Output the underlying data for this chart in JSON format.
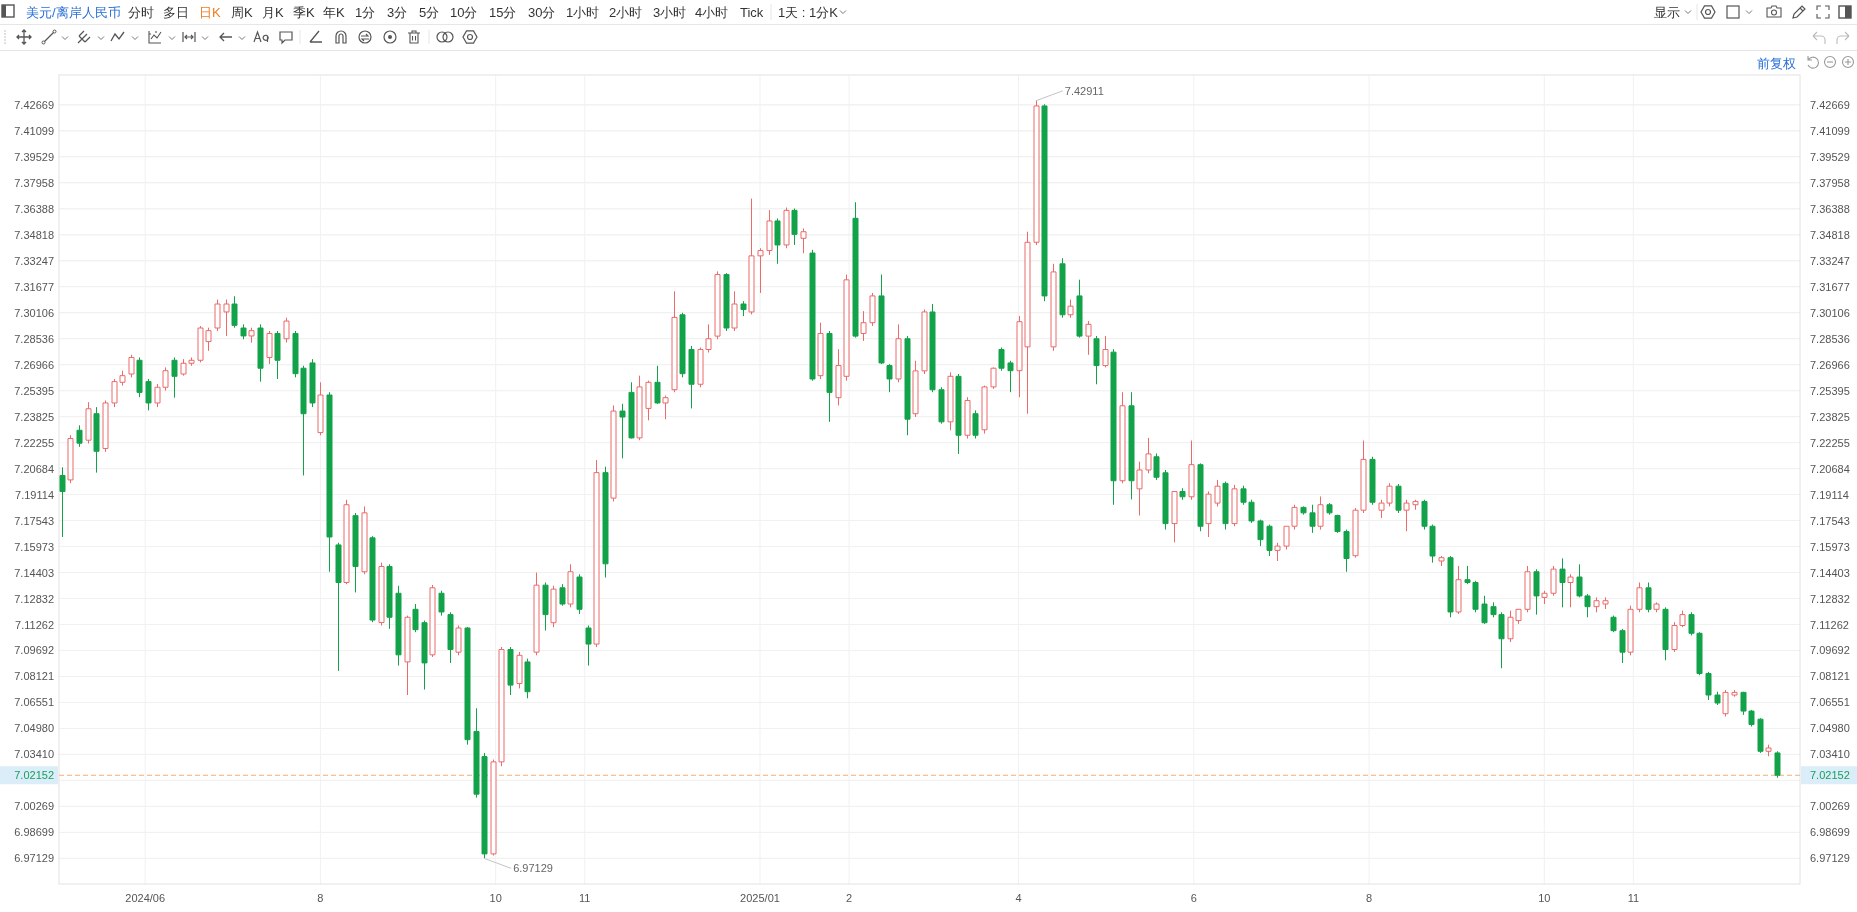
{
  "chart_data": {
    "type": "candlestick",
    "title": "美元/离岸人民币",
    "annotations": [
      "分时",
      "多日",
      "日K",
      "周K",
      "月K",
      "季K",
      "年K",
      "1分",
      "3分",
      "5分",
      "10分",
      "15分",
      "30分",
      "1小时",
      "2小时",
      "3小时",
      "4小时",
      "Tick",
      "1天 : 1分K",
      "显示",
      "前复权",
      {
        "text": "7.42911",
        "x": "2025-04-07",
        "y": 7.42911
      },
      {
        "text": "6.97129",
        "x": "2024-09-27",
        "y": 6.97129
      }
    ],
    "x": [
      "2024-05-03",
      "2024-05-06",
      "2024-05-09",
      "2024-05-12",
      "2024-05-15",
      "2024-05-18",
      "2024-05-21",
      "2024-05-24",
      "2024-05-27",
      "2024-05-30",
      "2024-06-02",
      "2024-06-05",
      "2024-06-08",
      "2024-06-11",
      "2024-06-14",
      "2024-06-17",
      "2024-06-20",
      "2024-06-23",
      "2024-06-26",
      "2024-06-29",
      "2024-07-02",
      "2024-07-05",
      "2024-07-08",
      "2024-07-11",
      "2024-07-14",
      "2024-07-17",
      "2024-07-20",
      "2024-07-23",
      "2024-07-26",
      "2024-07-29",
      "2024-08-01",
      "2024-08-04",
      "2024-08-07",
      "2024-08-10",
      "2024-08-13",
      "2024-08-16",
      "2024-08-19",
      "2024-08-22",
      "2024-08-25",
      "2024-08-28",
      "2024-08-31",
      "2024-09-03",
      "2024-09-06",
      "2024-09-09",
      "2024-09-12",
      "2024-09-15",
      "2024-09-18",
      "2024-09-21",
      "2024-09-24",
      "2024-09-27",
      "2024-09-30",
      "2024-10-03",
      "2024-10-06",
      "2024-10-09",
      "2024-10-12",
      "2024-10-15",
      "2024-10-18",
      "2024-10-21",
      "2024-10-24",
      "2024-10-27",
      "2024-10-30",
      "2024-11-02",
      "2024-11-05",
      "2024-11-08",
      "2024-11-11",
      "2024-11-14",
      "2024-11-17",
      "2024-11-20",
      "2024-11-23",
      "2024-11-26",
      "2024-11-29",
      "2024-12-02",
      "2024-12-05",
      "2024-12-08",
      "2024-12-11",
      "2024-12-14",
      "2024-12-17",
      "2024-12-20",
      "2024-12-23",
      "2024-12-26",
      "2024-12-29",
      "2025-01-01",
      "2025-01-04",
      "2025-01-07",
      "2025-01-10",
      "2025-01-13",
      "2025-01-16",
      "2025-01-19",
      "2025-01-22",
      "2025-01-25",
      "2025-01-28",
      "2025-01-31",
      "2025-02-03",
      "2025-02-06",
      "2025-02-09",
      "2025-02-12",
      "2025-02-15",
      "2025-02-18",
      "2025-02-21",
      "2025-02-24",
      "2025-02-27",
      "2025-03-02",
      "2025-03-05",
      "2025-03-08",
      "2025-03-11",
      "2025-03-14",
      "2025-03-17",
      "2025-03-20",
      "2025-03-23",
      "2025-03-26",
      "2025-03-29",
      "2025-04-01",
      "2025-04-04",
      "2025-04-07",
      "2025-04-10",
      "2025-04-13",
      "2025-04-16",
      "2025-04-19",
      "2025-04-22",
      "2025-04-25",
      "2025-04-28",
      "2025-05-01",
      "2025-05-04",
      "2025-05-07",
      "2025-05-10",
      "2025-05-13",
      "2025-05-16",
      "2025-05-19",
      "2025-05-22",
      "2025-05-25",
      "2025-05-28",
      "2025-05-31",
      "2025-06-03",
      "2025-06-06",
      "2025-06-09",
      "2025-06-12",
      "2025-06-15",
      "2025-06-18",
      "2025-06-21",
      "2025-06-24",
      "2025-06-27",
      "2025-06-30",
      "2025-07-03",
      "2025-07-06",
      "2025-07-09",
      "2025-07-12",
      "2025-07-15",
      "2025-07-18",
      "2025-07-21",
      "2025-07-24",
      "2025-07-27",
      "2025-07-30",
      "2025-08-02",
      "2025-08-05",
      "2025-08-08",
      "2025-08-11",
      "2025-08-14",
      "2025-08-17",
      "2025-08-20",
      "2025-08-23",
      "2025-08-26",
      "2025-08-29",
      "2025-09-01",
      "2025-09-04",
      "2025-09-07",
      "2025-09-10",
      "2025-09-13",
      "2025-09-16",
      "2025-09-19",
      "2025-09-22",
      "2025-09-25",
      "2025-09-28",
      "2025-10-01",
      "2025-10-04",
      "2025-10-07",
      "2025-10-10",
      "2025-10-13",
      "2025-10-16",
      "2025-10-19",
      "2025-10-22",
      "2025-10-25",
      "2025-10-28",
      "2025-10-31",
      "2025-11-03",
      "2025-11-06",
      "2025-11-09",
      "2025-11-12",
      "2025-11-15",
      "2025-11-18",
      "2025-11-21",
      "2025-11-24",
      "2025-11-27",
      "2025-11-30",
      "2025-12-03",
      "2025-12-06",
      "2025-12-09",
      "2025-12-12",
      "2025-12-15",
      "2025-12-18",
      "2025-12-21"
    ],
    "ohlc": [
      [
        7.2027,
        7.2076,
        7.1655,
        7.193
      ],
      [
        7.2,
        7.227,
        7.198,
        7.225
      ],
      [
        7.23,
        7.233,
        7.22,
        7.2222
      ],
      [
        7.224,
        7.247,
        7.222,
        7.243
      ],
      [
        7.24,
        7.244,
        7.2044,
        7.2173
      ],
      [
        7.219,
        7.248,
        7.217,
        7.2465
      ],
      [
        7.2465,
        7.261,
        7.244,
        7.2594
      ],
      [
        7.259,
        7.266,
        7.257,
        7.263
      ],
      [
        7.264,
        7.2756,
        7.262,
        7.274
      ],
      [
        7.2723,
        7.274,
        7.25,
        7.2529
      ],
      [
        7.2594,
        7.261,
        7.242,
        7.2465
      ],
      [
        7.2465,
        7.258,
        7.244,
        7.256
      ],
      [
        7.256,
        7.268,
        7.254,
        7.266
      ],
      [
        7.2723,
        7.274,
        7.2497,
        7.2626
      ],
      [
        7.264,
        7.273,
        7.263,
        7.2705
      ],
      [
        7.2705,
        7.274,
        7.269,
        7.2723
      ],
      [
        7.2723,
        7.293,
        7.271,
        7.2918
      ],
      [
        7.2836,
        7.292,
        7.278,
        7.2902
      ],
      [
        7.2918,
        7.309,
        7.29,
        7.3063
      ],
      [
        7.3015,
        7.309,
        7.287,
        7.3063
      ],
      [
        7.3063,
        7.311,
        7.292,
        7.2934
      ],
      [
        7.2918,
        7.294,
        7.285,
        7.287
      ],
      [
        7.287,
        7.292,
        7.283,
        7.2902
      ],
      [
        7.2918,
        7.294,
        7.2594,
        7.2675
      ],
      [
        7.274,
        7.29,
        7.27,
        7.2885
      ],
      [
        7.2885,
        7.29,
        7.261,
        7.2723
      ],
      [
        7.2853,
        7.298,
        7.283,
        7.296
      ],
      [
        7.2885,
        7.29,
        7.262,
        7.2642
      ],
      [
        7.2675,
        7.269,
        7.2027,
        7.24
      ],
      [
        7.2707,
        7.273,
        7.244,
        7.2465
      ],
      [
        7.2286,
        7.259,
        7.227,
        7.2513
      ],
      [
        7.2513,
        7.253,
        7.1445,
        7.1655
      ],
      [
        7.1607,
        7.162,
        7.0846,
        7.138
      ],
      [
        7.138,
        7.188,
        7.137,
        7.185
      ],
      [
        7.1784,
        7.18,
        7.132,
        7.1477
      ],
      [
        7.1445,
        7.184,
        7.143,
        7.1801
      ],
      [
        7.165,
        7.166,
        7.114,
        7.1153
      ],
      [
        7.1138,
        7.15,
        7.112,
        7.1477
      ],
      [
        7.1477,
        7.149,
        7.11,
        7.117
      ],
      [
        7.1315,
        7.136,
        7.0878,
        7.0943
      ],
      [
        7.09,
        7.118,
        7.07,
        7.117
      ],
      [
        7.1218,
        7.125,
        7.108,
        7.1095
      ],
      [
        7.1137,
        7.115,
        7.0733,
        7.0894
      ],
      [
        7.0943,
        7.1365,
        7.093,
        7.1348
      ],
      [
        7.1315,
        7.133,
        7.118,
        7.1202
      ],
      [
        7.1186,
        7.12,
        7.0894,
        7.0975
      ],
      [
        7.0959,
        7.112,
        7.094,
        7.1105
      ],
      [
        7.1105,
        7.111,
        7.04,
        7.043
      ],
      [
        7.048,
        7.062,
        7.008,
        7.0101
      ],
      [
        7.0328,
        7.035,
        6.97129,
        6.974
      ],
      [
        6.974,
        7.031,
        6.973,
        7.0296
      ],
      [
        7.0296,
        7.099,
        7.027,
        7.0975
      ],
      [
        7.0975,
        7.099,
        7.07,
        7.076
      ],
      [
        7.077,
        7.096,
        7.074,
        7.094
      ],
      [
        7.09,
        7.092,
        7.068,
        7.072
      ],
      [
        7.0959,
        7.144,
        7.094,
        7.1364
      ],
      [
        7.1364,
        7.138,
        7.109,
        7.1186
      ],
      [
        7.1137,
        7.136,
        7.111,
        7.134
      ],
      [
        7.1348,
        7.137,
        7.124,
        7.125
      ],
      [
        7.125,
        7.149,
        7.123,
        7.1445
      ],
      [
        7.1413,
        7.143,
        7.119,
        7.1218
      ],
      [
        7.1105,
        7.112,
        7.0878,
        7.1008
      ],
      [
        7.1008,
        7.212,
        7.099,
        7.2044
      ],
      [
        7.2044,
        7.208,
        7.141,
        7.1493
      ],
      [
        7.189,
        7.245,
        7.187,
        7.2416
      ],
      [
        7.2416,
        7.246,
        7.213,
        7.238
      ],
      [
        7.2529,
        7.259,
        7.225,
        7.2254
      ],
      [
        7.2254,
        7.263,
        7.224,
        7.2562
      ],
      [
        7.2432,
        7.26,
        7.236,
        7.259
      ],
      [
        7.259,
        7.269,
        7.246,
        7.2465
      ],
      [
        7.2465,
        7.251,
        7.2367,
        7.2497
      ],
      [
        7.2545,
        7.314,
        7.253,
        7.2982
      ],
      [
        7.2998,
        7.301,
        7.262,
        7.2642
      ],
      [
        7.2788,
        7.281,
        7.2432,
        7.2578
      ],
      [
        7.2578,
        7.28,
        7.256,
        7.2788
      ],
      [
        7.2788,
        7.294,
        7.277,
        7.2853
      ],
      [
        7.2869,
        7.326,
        7.285,
        7.3241
      ],
      [
        7.3241,
        7.325,
        7.29,
        7.2918
      ],
      [
        7.2918,
        7.314,
        7.29,
        7.3063
      ],
      [
        7.3063,
        7.308,
        7.299,
        7.303
      ],
      [
        7.3015,
        7.37,
        7.3,
        7.3354
      ],
      [
        7.3354,
        7.34,
        7.313,
        7.3386
      ],
      [
        7.3386,
        7.363,
        7.336,
        7.3565
      ],
      [
        7.3565,
        7.358,
        7.3306,
        7.342
      ],
      [
        7.342,
        7.3646,
        7.34,
        7.3629
      ],
      [
        7.3629,
        7.364,
        7.342,
        7.3484
      ],
      [
        7.346,
        7.352,
        7.337,
        7.35
      ],
      [
        7.3371,
        7.339,
        7.26,
        7.261
      ],
      [
        7.263,
        7.295,
        7.261,
        7.2885
      ],
      [
        7.2885,
        7.29,
        7.2351,
        7.2529
      ],
      [
        7.2497,
        7.279,
        7.245,
        7.2691
      ],
      [
        7.2626,
        7.3241,
        7.26,
        7.3209
      ],
      [
        7.3581,
        7.3678,
        7.286,
        7.2869
      ],
      [
        7.2885,
        7.302,
        7.284,
        7.295
      ],
      [
        7.295,
        7.313,
        7.293,
        7.3112
      ],
      [
        7.3112,
        7.3241,
        7.27,
        7.2707
      ],
      [
        7.2691,
        7.27,
        7.253,
        7.261
      ],
      [
        7.261,
        7.294,
        7.259,
        7.2853
      ],
      [
        7.2853,
        7.287,
        7.227,
        7.2367
      ],
      [
        7.24,
        7.272,
        7.238,
        7.2659
      ],
      [
        7.2659,
        7.303,
        7.264,
        7.3015
      ],
      [
        7.3015,
        7.3063,
        7.253,
        7.2545
      ],
      [
        7.2545,
        7.256,
        7.234,
        7.2351
      ],
      [
        7.2351,
        7.265,
        7.23,
        7.2626
      ],
      [
        7.2626,
        7.264,
        7.2157,
        7.227
      ],
      [
        7.227,
        7.25,
        7.225,
        7.248
      ],
      [
        7.24,
        7.242,
        7.225,
        7.227
      ],
      [
        7.2303,
        7.257,
        7.228,
        7.2562
      ],
      [
        7.2562,
        7.268,
        7.255,
        7.2675
      ],
      [
        7.2788,
        7.28,
        7.266,
        7.2675
      ],
      [
        7.2707,
        7.272,
        7.253,
        7.266
      ],
      [
        7.266,
        7.299,
        7.25,
        7.2956
      ],
      [
        7.2804,
        7.35,
        7.24,
        7.3436
      ],
      [
        7.3436,
        7.42911,
        7.342,
        7.426
      ],
      [
        7.426,
        7.427,
        7.308,
        7.3112
      ],
      [
        7.2804,
        7.3306,
        7.278,
        7.3257
      ],
      [
        7.3306,
        7.334,
        7.298,
        7.2998
      ],
      [
        7.2998,
        7.309,
        7.298,
        7.305
      ],
      [
        7.3112,
        7.321,
        7.286,
        7.2869
      ],
      [
        7.2869,
        7.296,
        7.2756,
        7.294
      ],
      [
        7.2853,
        7.287,
        7.2578,
        7.2691
      ],
      [
        7.2691,
        7.287,
        7.268,
        7.2788
      ],
      [
        7.2772,
        7.279,
        7.185,
        7.1995
      ],
      [
        7.1995,
        7.253,
        7.198,
        7.2448
      ],
      [
        7.2448,
        7.253,
        7.1882,
        7.1995
      ],
      [
        7.1946,
        7.211,
        7.1785,
        7.206
      ],
      [
        7.206,
        7.2254,
        7.204,
        7.2157
      ],
      [
        7.214,
        7.216,
        7.2,
        7.2016
      ],
      [
        7.2043,
        7.206,
        7.17,
        7.1736
      ],
      [
        7.1736,
        7.193,
        7.1623,
        7.193
      ],
      [
        7.193,
        7.195,
        7.188,
        7.1898
      ],
      [
        7.1898,
        7.2238,
        7.188,
        7.2092
      ],
      [
        7.2092,
        7.21,
        7.169,
        7.172
      ],
      [
        7.1736,
        7.193,
        7.1655,
        7.1914
      ],
      [
        7.186,
        7.2,
        7.184,
        7.1962
      ],
      [
        7.1979,
        7.199,
        7.17,
        7.1736
      ],
      [
        7.1736,
        7.197,
        7.172,
        7.1946
      ],
      [
        7.1946,
        7.1965,
        7.185,
        7.1865
      ],
      [
        7.1865,
        7.188,
        7.174,
        7.1752
      ],
      [
        7.1752,
        7.176,
        7.16,
        7.1639
      ],
      [
        7.172,
        7.173,
        7.154,
        7.1574
      ],
      [
        7.1574,
        7.162,
        7.151,
        7.16
      ],
      [
        7.16,
        7.172,
        7.158,
        7.172
      ],
      [
        7.172,
        7.185,
        7.17,
        7.1834
      ],
      [
        7.1834,
        7.184,
        7.179,
        7.1801
      ],
      [
        7.1801,
        7.185,
        7.168,
        7.172
      ],
      [
        7.172,
        7.19,
        7.17,
        7.185
      ],
      [
        7.185,
        7.186,
        7.179,
        7.1801
      ],
      [
        7.1785,
        7.179,
        7.168,
        7.1688
      ],
      [
        7.1688,
        7.17,
        7.1445,
        7.1525
      ],
      [
        7.1542,
        7.183,
        7.153,
        7.1817
      ],
      [
        7.1817,
        7.2238,
        7.18,
        7.2124
      ],
      [
        7.2124,
        7.214,
        7.185,
        7.1865
      ],
      [
        7.1817,
        7.188,
        7.177,
        7.186
      ],
      [
        7.186,
        7.198,
        7.184,
        7.1962
      ],
      [
        7.1962,
        7.1975,
        7.18,
        7.1817
      ],
      [
        7.1817,
        7.188,
        7.169,
        7.186
      ],
      [
        7.185,
        7.188,
        7.182,
        7.187
      ],
      [
        7.187,
        7.188,
        7.17,
        7.172
      ],
      [
        7.172,
        7.173,
        7.15,
        7.154
      ],
      [
        7.151,
        7.154,
        7.148,
        7.153
      ],
      [
        7.153,
        7.154,
        7.117,
        7.1202
      ],
      [
        7.1202,
        7.148,
        7.119,
        7.1397
      ],
      [
        7.1397,
        7.148,
        7.137,
        7.138
      ],
      [
        7.138,
        7.139,
        7.12,
        7.1218
      ],
      [
        7.125,
        7.13,
        7.113,
        7.1137
      ],
      [
        7.1234,
        7.126,
        7.117,
        7.1186
      ],
      [
        7.1186,
        7.12,
        7.0862,
        7.104
      ],
      [
        7.104,
        7.121,
        7.102,
        7.117
      ],
      [
        7.115,
        7.122,
        7.113,
        7.1218
      ],
      [
        7.1218,
        7.148,
        7.12,
        7.1445
      ],
      [
        7.1445,
        7.146,
        7.1186,
        7.1299
      ],
      [
        7.129,
        7.133,
        7.125,
        7.1315
      ],
      [
        7.1315,
        7.148,
        7.13,
        7.1461
      ],
      [
        7.1461,
        7.1526,
        7.123,
        7.138
      ],
      [
        7.138,
        7.143,
        7.123,
        7.1413
      ],
      [
        7.1413,
        7.149,
        7.129,
        7.1299
      ],
      [
        7.1299,
        7.131,
        7.117,
        7.1234
      ],
      [
        7.1234,
        7.129,
        7.12,
        7.127
      ],
      [
        7.125,
        7.129,
        7.122,
        7.127
      ],
      [
        7.117,
        7.118,
        7.108,
        7.1089
      ],
      [
        7.1089,
        7.11,
        7.0894,
        7.0959
      ],
      [
        7.0959,
        7.124,
        7.094,
        7.1218
      ],
      [
        7.1218,
        7.138,
        7.12,
        7.1348
      ],
      [
        7.1348,
        7.138,
        7.12,
        7.1218
      ],
      [
        7.1218,
        7.126,
        7.12,
        7.125
      ],
      [
        7.1218,
        7.123,
        7.091,
        7.0975
      ],
      [
        7.0975,
        7.114,
        7.096,
        7.112
      ],
      [
        7.112,
        7.121,
        7.111,
        7.1186
      ],
      [
        7.1186,
        7.12,
        7.106,
        7.1073
      ],
      [
        7.1073,
        7.108,
        7.082,
        7.083
      ],
      [
        7.083,
        7.084,
        7.067,
        7.07
      ],
      [
        7.07,
        7.072,
        7.064,
        7.0652
      ],
      [
        7.0587,
        7.073,
        7.057,
        7.0716
      ],
      [
        7.07,
        7.073,
        7.069,
        7.0716
      ],
      [
        7.0716,
        7.072,
        7.058,
        7.0603
      ],
      [
        7.0603,
        7.061,
        7.051,
        7.0522
      ],
      [
        7.0554,
        7.056,
        7.035,
        7.036
      ],
      [
        7.036,
        7.04,
        7.033,
        7.038
      ],
      [
        7.035,
        7.036,
        7.02,
        7.02152
      ]
    ],
    "colors": [
      "#12a24a",
      "#ec6a6a",
      "#12a24a",
      "#ec6a6a",
      "#12a24a",
      "#ec6a6a",
      "#ec6a6a",
      "#ec6a6a",
      "#ec6a6a",
      "#12a24a",
      "#12a24a",
      "#ec6a6a",
      "#ec6a6a",
      "#12a24a",
      "#ec6a6a",
      "#ec6a6a",
      "#ec6a6a",
      "#ec6a6a",
      "#ec6a6a",
      "#ec6a6a",
      "#12a24a",
      "#12a24a",
      "#ec6a6a",
      "#12a24a",
      "#ec6a6a",
      "#12a24a",
      "#ec6a6a",
      "#12a24a",
      "#12a24a",
      "#12a24a",
      "#ec6a6a",
      "#12a24a",
      "#12a24a",
      "#ec6a6a",
      "#12a24a",
      "#ec6a6a",
      "#12a24a",
      "#ec6a6a",
      "#12a24a",
      "#12a24a",
      "#ec6a6a",
      "#12a24a",
      "#12a24a",
      "#ec6a6a",
      "#12a24a",
      "#12a24a",
      "#ec6a6a",
      "#12a24a",
      "#12a24a",
      "#12a24a",
      "#ec6a6a",
      "#ec6a6a",
      "#12a24a",
      "#ec6a6a",
      "#12a24a",
      "#ec6a6a",
      "#12a24a",
      "#ec6a6a",
      "#12a24a",
      "#ec6a6a",
      "#12a24a",
      "#12a24a",
      "#ec6a6a",
      "#12a24a",
      "#ec6a6a",
      "#12a24a",
      "#12a24a",
      "#ec6a6a",
      "#ec6a6a",
      "#12a24a",
      "#ec6a6a",
      "#ec6a6a",
      "#12a24a",
      "#12a24a",
      "#ec6a6a",
      "#ec6a6a",
      "#ec6a6a",
      "#12a24a",
      "#ec6a6a",
      "#12a24a",
      "#ec6a6a",
      "#ec6a6a",
      "#ec6a6a",
      "#12a24a",
      "#ec6a6a",
      "#12a24a",
      "#ec6a6a",
      "#12a24a",
      "#ec6a6a",
      "#12a24a",
      "#ec6a6a",
      "#ec6a6a",
      "#12a24a",
      "#ec6a6a",
      "#ec6a6a",
      "#12a24a",
      "#12a24a",
      "#ec6a6a",
      "#12a24a",
      "#ec6a6a",
      "#ec6a6a",
      "#12a24a",
      "#12a24a",
      "#ec6a6a",
      "#12a24a",
      "#ec6a6a",
      "#12a24a",
      "#ec6a6a",
      "#ec6a6a",
      "#12a24a",
      "#12a24a",
      "#ec6a6a",
      "#ec6a6a",
      "#ec6a6a",
      "#12a24a",
      "#ec6a6a",
      "#12a24a",
      "#ec6a6a",
      "#12a24a",
      "#ec6a6a",
      "#12a24a",
      "#ec6a6a",
      "#12a24a",
      "#ec6a6a",
      "#12a24a",
      "#ec6a6a",
      "#ec6a6a",
      "#12a24a",
      "#12a24a",
      "#ec6a6a",
      "#12a24a",
      "#ec6a6a",
      "#12a24a",
      "#ec6a6a",
      "#ec6a6a",
      "#12a24a",
      "#ec6a6a",
      "#12a24a",
      "#12a24a",
      "#12a24a",
      "#12a24a",
      "#ec6a6a",
      "#ec6a6a",
      "#ec6a6a",
      "#12a24a",
      "#12a24a",
      "#ec6a6a",
      "#12a24a",
      "#12a24a",
      "#12a24a",
      "#ec6a6a",
      "#ec6a6a",
      "#12a24a",
      "#ec6a6a",
      "#ec6a6a",
      "#12a24a",
      "#ec6a6a",
      "#ec6a6a",
      "#12a24a",
      "#12a24a",
      "#ec6a6a",
      "#12a24a",
      "#ec6a6a",
      "#12a24a",
      "#12a24a",
      "#12a24a",
      "#12a24a",
      "#12a24a",
      "#ec6a6a",
      "#ec6a6a",
      "#ec6a6a",
      "#12a24a",
      "#ec6a6a",
      "#ec6a6a",
      "#12a24a",
      "#ec6a6a",
      "#12a24a",
      "#12a24a",
      "#ec6a6a",
      "#ec6a6a",
      "#12a24a",
      "#12a24a",
      "#ec6a6a",
      "#ec6a6a",
      "#12a24a",
      "#ec6a6a",
      "#12a24a",
      "#ec6a6a",
      "#ec6a6a",
      "#12a24a",
      "#12a24a",
      "#12a24a",
      "#12a24a",
      "#ec6a6a",
      "#ec6a6a",
      "#12a24a",
      "#12a24a",
      "#12a24a",
      "#ec6a6a",
      "#12a24a"
    ],
    "xlim": [
      "2024-05-02",
      "2025-12-29"
    ],
    "xticks": [
      {
        "value": "2024-06-01",
        "label": "2024/06"
      },
      {
        "value": "2024-08-01",
        "label": "8"
      },
      {
        "value": "2024-10-01",
        "label": "10"
      },
      {
        "value": "2024-11-01",
        "label": "11"
      },
      {
        "value": "2025-01-01",
        "label": "2025/01"
      },
      {
        "value": "2025-02-01",
        "label": "2"
      },
      {
        "value": "2025-04-01",
        "label": "4"
      },
      {
        "value": "2025-06-01",
        "label": "6"
      },
      {
        "value": "2025-08-01",
        "label": "8"
      },
      {
        "value": "2025-10-01",
        "label": "10"
      },
      {
        "value": "2025-11-01",
        "label": "11"
      }
    ],
    "ylim": [
      6.9558,
      7.4447
    ],
    "yticks": [
      6.97129,
      6.98699,
      7.00269,
      {
        "value": 7.0184,
        "label": null
      },
      {
        "value": 7.0341,
        "label": "7.03410"
      },
      {
        "value": 7.0498,
        "label": "7.04980"
      },
      7.06551,
      7.08121,
      7.09692,
      7.11262,
      7.12832,
      7.14403,
      7.15973,
      7.17543,
      7.19114,
      7.20684,
      7.22255,
      7.23825,
      7.25395,
      7.26966,
      7.28536,
      7.30106,
      7.31677,
      7.33247,
      7.34818,
      7.36388,
      7.37958,
      7.39529,
      7.41099,
      7.42669
    ],
    "y2lim": [
      6.9558,
      7.4447
    ],
    "y2ticks": [
      6.97129,
      6.98699,
      7.00269,
      {
        "value": 7.0184,
        "label": null
      },
      {
        "value": 7.0341,
        "label": "7.03410"
      },
      {
        "value": 7.0498,
        "label": "7.04980"
      },
      7.06551,
      7.08121,
      7.09692,
      7.11262,
      7.12832,
      7.14403,
      7.15973,
      7.17543,
      7.19114,
      7.20684,
      7.22255,
      7.23825,
      7.25395,
      7.26966,
      7.28536,
      7.30106,
      7.31677,
      7.33247,
      7.34818,
      7.36388,
      7.37958,
      7.39529,
      7.41099,
      7.42669
    ],
    "grid": true,
    "ref_lines": [
      {
        "axis": "y",
        "value": 7.02152,
        "label": "7.02152",
        "color": "#f5ad74",
        "line_style": "dashed"
      }
    ]
  }
}
